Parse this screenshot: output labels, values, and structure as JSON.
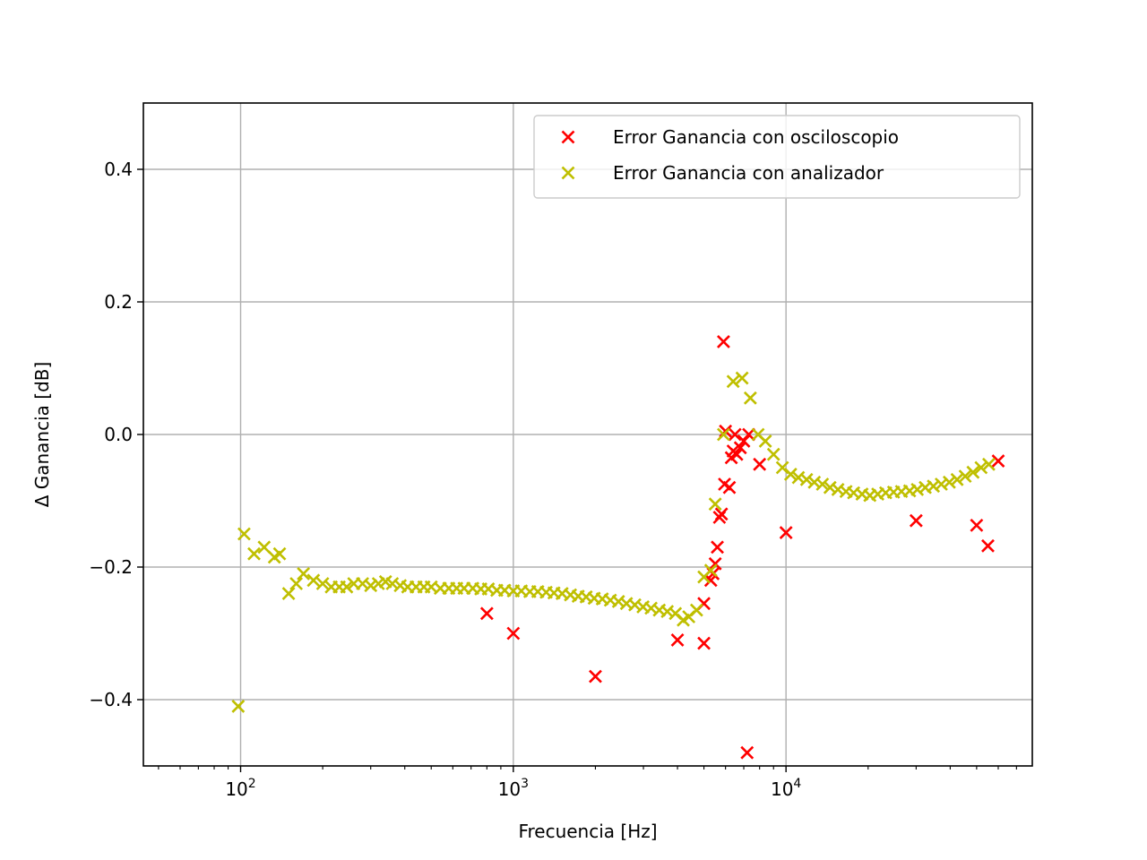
{
  "chart_data": {
    "type": "scatter",
    "title": "",
    "xlabel": "Frecuencia [Hz]",
    "ylabel": "Δ Ganancia [dB]",
    "xscale": "log",
    "xlim": [
      44,
      80000
    ],
    "ylim": [
      -0.5,
      0.5
    ],
    "grid": true,
    "legend_position": "upper right",
    "xticks": [
      {
        "value": 100,
        "base": "10",
        "exp": "2"
      },
      {
        "value": 1000,
        "base": "10",
        "exp": "3"
      },
      {
        "value": 10000,
        "base": "10",
        "exp": "4"
      }
    ],
    "yticks": [
      {
        "value": -0.4,
        "label": "−0.4"
      },
      {
        "value": -0.2,
        "label": "−0.2"
      },
      {
        "value": 0.0,
        "label": "0.0"
      },
      {
        "value": 0.2,
        "label": "0.2"
      },
      {
        "value": 0.4,
        "label": "0.4"
      }
    ],
    "series": [
      {
        "name": "Error Ganancia con osciloscopio",
        "color": "#ff0000",
        "marker": "x",
        "points": [
          [
            800,
            -0.27
          ],
          [
            1000,
            -0.3
          ],
          [
            2000,
            -0.365
          ],
          [
            4000,
            -0.31
          ],
          [
            5000,
            -0.315
          ],
          [
            5000,
            -0.255
          ],
          [
            5300,
            -0.22
          ],
          [
            5400,
            -0.21
          ],
          [
            5500,
            -0.195
          ],
          [
            5600,
            -0.17
          ],
          [
            5700,
            -0.125
          ],
          [
            5800,
            -0.12
          ],
          [
            5900,
            0.14
          ],
          [
            5950,
            -0.075
          ],
          [
            6000,
            0.005
          ],
          [
            6200,
            -0.08
          ],
          [
            6300,
            -0.035
          ],
          [
            6400,
            -0.025
          ],
          [
            6500,
            0.0
          ],
          [
            6600,
            -0.03
          ],
          [
            6800,
            -0.02
          ],
          [
            7000,
            -0.01
          ],
          [
            7200,
            -0.48
          ],
          [
            7300,
            0.0
          ],
          [
            8000,
            -0.045
          ],
          [
            10000,
            -0.148
          ],
          [
            30000,
            -0.13
          ],
          [
            50000,
            -0.137
          ],
          [
            55000,
            -0.168
          ],
          [
            60000,
            -0.04
          ]
        ]
      },
      {
        "name": "Error Ganancia con analizador",
        "color": "#bfbf00",
        "marker": "x",
        "points": [
          [
            98,
            -0.41
          ],
          [
            103,
            -0.15
          ],
          [
            112,
            -0.18
          ],
          [
            122,
            -0.17
          ],
          [
            133,
            -0.185
          ],
          [
            139,
            -0.18
          ],
          [
            150,
            -0.24
          ],
          [
            160,
            -0.225
          ],
          [
            170,
            -0.21
          ],
          [
            185,
            -0.22
          ],
          [
            200,
            -0.225
          ],
          [
            215,
            -0.23
          ],
          [
            230,
            -0.23
          ],
          [
            245,
            -0.23
          ],
          [
            260,
            -0.225
          ],
          [
            280,
            -0.225
          ],
          [
            300,
            -0.228
          ],
          [
            320,
            -0.225
          ],
          [
            340,
            -0.222
          ],
          [
            360,
            -0.225
          ],
          [
            385,
            -0.228
          ],
          [
            410,
            -0.23
          ],
          [
            440,
            -0.23
          ],
          [
            470,
            -0.23
          ],
          [
            500,
            -0.23
          ],
          [
            540,
            -0.232
          ],
          [
            580,
            -0.232
          ],
          [
            620,
            -0.232
          ],
          [
            660,
            -0.232
          ],
          [
            710,
            -0.232
          ],
          [
            760,
            -0.233
          ],
          [
            810,
            -0.233
          ],
          [
            870,
            -0.235
          ],
          [
            930,
            -0.235
          ],
          [
            1000,
            -0.236
          ],
          [
            1070,
            -0.236
          ],
          [
            1150,
            -0.237
          ],
          [
            1230,
            -0.237
          ],
          [
            1320,
            -0.238
          ],
          [
            1410,
            -0.239
          ],
          [
            1510,
            -0.24
          ],
          [
            1620,
            -0.242
          ],
          [
            1730,
            -0.244
          ],
          [
            1850,
            -0.245
          ],
          [
            1980,
            -0.247
          ],
          [
            2120,
            -0.248
          ],
          [
            2270,
            -0.25
          ],
          [
            2430,
            -0.252
          ],
          [
            2600,
            -0.255
          ],
          [
            2790,
            -0.257
          ],
          [
            2990,
            -0.26
          ],
          [
            3200,
            -0.262
          ],
          [
            3430,
            -0.265
          ],
          [
            3670,
            -0.267
          ],
          [
            3930,
            -0.27
          ],
          [
            4200,
            -0.28
          ],
          [
            4400,
            -0.275
          ],
          [
            4700,
            -0.265
          ],
          [
            5000,
            -0.215
          ],
          [
            5300,
            -0.205
          ],
          [
            5500,
            -0.105
          ],
          [
            5900,
            0.0
          ],
          [
            6400,
            0.08
          ],
          [
            6900,
            0.085
          ],
          [
            7400,
            0.055
          ],
          [
            7900,
            0.0
          ],
          [
            8400,
            -0.01
          ],
          [
            9000,
            -0.03
          ],
          [
            9700,
            -0.05
          ],
          [
            10400,
            -0.06
          ],
          [
            11100,
            -0.065
          ],
          [
            11900,
            -0.068
          ],
          [
            12700,
            -0.072
          ],
          [
            13600,
            -0.075
          ],
          [
            14500,
            -0.08
          ],
          [
            15500,
            -0.083
          ],
          [
            16600,
            -0.086
          ],
          [
            17700,
            -0.088
          ],
          [
            19000,
            -0.09
          ],
          [
            20300,
            -0.092
          ],
          [
            21700,
            -0.09
          ],
          [
            23200,
            -0.088
          ],
          [
            24800,
            -0.087
          ],
          [
            26500,
            -0.086
          ],
          [
            28400,
            -0.085
          ],
          [
            30300,
            -0.083
          ],
          [
            32400,
            -0.08
          ],
          [
            34700,
            -0.078
          ],
          [
            37100,
            -0.075
          ],
          [
            39700,
            -0.072
          ],
          [
            42400,
            -0.068
          ],
          [
            45400,
            -0.063
          ],
          [
            48500,
            -0.057
          ],
          [
            51900,
            -0.05
          ],
          [
            55400,
            -0.045
          ]
        ]
      }
    ]
  }
}
